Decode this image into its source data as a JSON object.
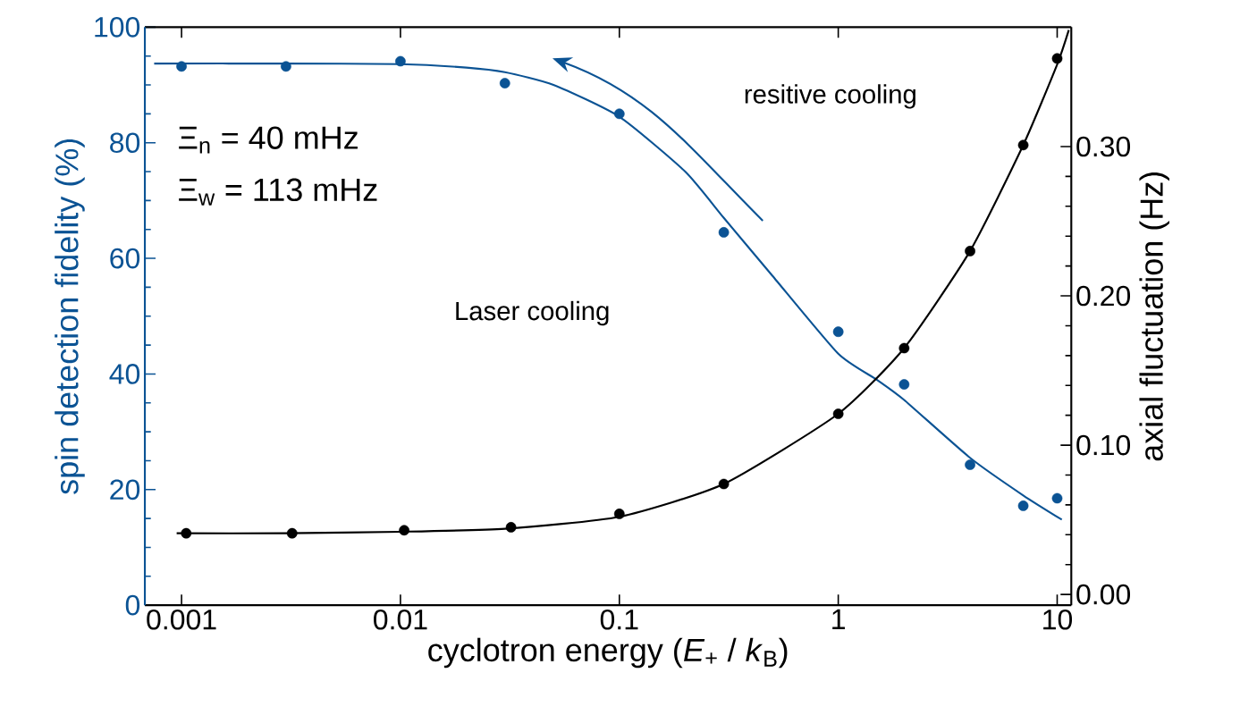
{
  "chart_data": {
    "type": "scatter",
    "xlabel": "cyclotron energy (*E*$_{+}$ / *k*$_{B}$)",
    "ylabel": "spin detection fidelity (%)",
    "y2label": "axial fluctuation (Hz)",
    "log": "x",
    "xlim": [
      0.00068,
      11.6
    ],
    "xticks": [
      0.001,
      0.01,
      0.1,
      1,
      10
    ],
    "ylim": [
      0,
      100
    ],
    "yticks": [
      0,
      20,
      40,
      60,
      80,
      100
    ],
    "y2lim": [
      -0.0072,
      0.38
    ],
    "y2ticks": [
      {
        "value": 0,
        "label": "0.00"
      },
      {
        "value": 0.1,
        "label": "0.10"
      },
      {
        "value": 0.2,
        "label": "0.20"
      },
      {
        "value": 0.3,
        "label": "0.30"
      }
    ],
    "annotations": [
      "Ξ$_{n}$ = 40 mHz",
      "Ξ$_{w}$ = 113 mHz",
      "resitive cooling",
      "Laser cooling"
    ],
    "series": [
      {
        "marker": "circle",
        "color": "#0b5394",
        "x": [
          0.001,
          0.003,
          0.01,
          0.03,
          0.1,
          0.3,
          1,
          2,
          4,
          7,
          10
        ],
        "values": [
          93.2,
          93.2,
          94.1,
          90.3,
          85.0,
          64.5,
          47.3,
          38.2,
          24.3,
          17.2,
          18.5
        ]
      },
      {
        "type": "line",
        "marker": "none",
        "color": "#0b5394",
        "x": [
          0.00075,
          0.003,
          0.01,
          0.02,
          0.03,
          0.05,
          0.1,
          0.2,
          0.3,
          0.5,
          1,
          1.5,
          2,
          4,
          7,
          10.5
        ],
        "values": [
          93.7,
          93.7,
          93.6,
          93.0,
          92.2,
          90.0,
          84.5,
          75.0,
          67.0,
          57.0,
          43.5,
          39.0,
          35.5,
          25.5,
          19.0,
          14.8
        ]
      },
      {
        "marker": "circle",
        "axis": "y2",
        "color": "#000000",
        "x": [
          0.00105,
          0.0032,
          0.0104,
          0.032,
          0.1,
          0.3,
          1,
          2,
          4,
          7,
          10
        ],
        "values": [
          0.041,
          0.041,
          0.043,
          0.045,
          0.054,
          0.074,
          0.121,
          0.165,
          0.23,
          0.301,
          0.359
        ]
      },
      {
        "type": "line",
        "marker": "none",
        "axis": "y2",
        "color": "#000000",
        "x": [
          0.00095,
          0.003,
          0.01,
          0.03,
          0.1,
          0.3,
          1,
          2,
          4,
          7,
          10,
          11.3
        ],
        "values": [
          0.041,
          0.041,
          0.042,
          0.044,
          0.052,
          0.074,
          0.121,
          0.165,
          0.23,
          0.301,
          0.355,
          0.378
        ]
      }
    ]
  }
}
